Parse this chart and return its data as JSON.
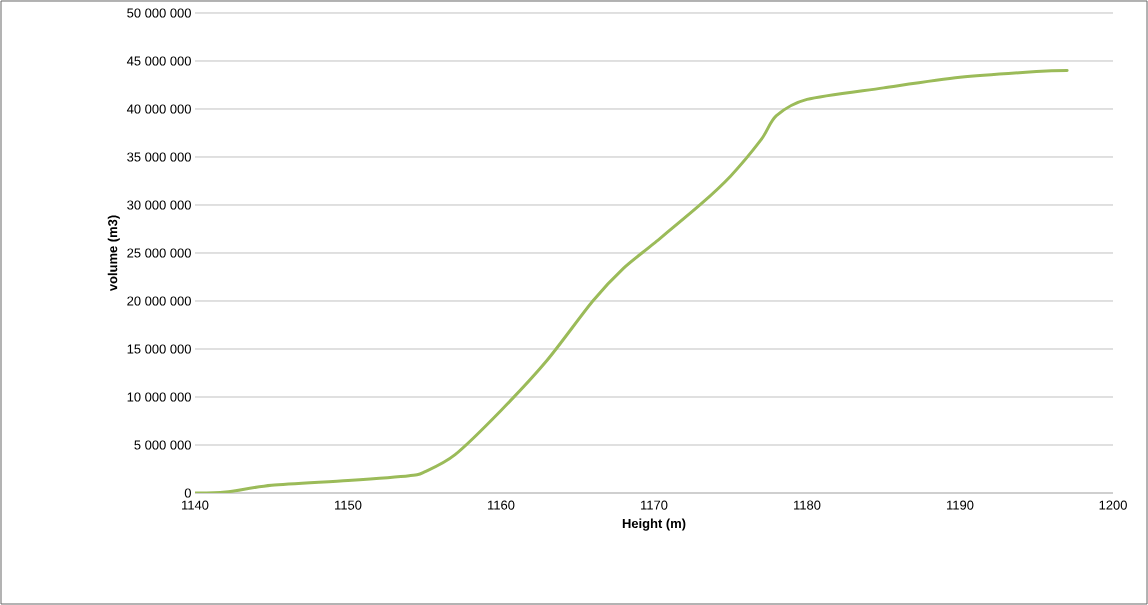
{
  "chart_data": {
    "type": "line",
    "xlabel": "Height (m)",
    "ylabel": "volume (m3)",
    "x": [
      1140,
      1142,
      1145,
      1150,
      1154,
      1155,
      1157,
      1160,
      1163,
      1166,
      1168,
      1170,
      1173,
      1175,
      1177,
      1178,
      1180,
      1185,
      1190,
      1195,
      1197
    ],
    "series": [
      {
        "color": "#9bbb59",
        "values": [
          0,
          100000,
          800000,
          1300000,
          1800000,
          2200000,
          4000000,
          8600000,
          13800000,
          20000000,
          23400000,
          26000000,
          30000000,
          33000000,
          36800000,
          39300000,
          41000000,
          42200000,
          43300000,
          43900000,
          44000000
        ]
      }
    ],
    "xlim": [
      1140,
      1200
    ],
    "xticks": [
      1140,
      1150,
      1160,
      1170,
      1180,
      1190,
      1200
    ],
    "ylim": [
      0,
      50000000
    ],
    "yticks": [
      0,
      {
        "value": 5000000,
        "label": "5 000 000"
      },
      {
        "value": 10000000,
        "label": "10 000 000"
      },
      {
        "value": 15000000,
        "label": "15 000 000"
      },
      {
        "value": 20000000,
        "label": "20 000 000"
      },
      {
        "value": 25000000,
        "label": "25 000 000"
      },
      {
        "value": 30000000,
        "label": "30 000 000"
      },
      {
        "value": 35000000,
        "label": "35 000 000"
      },
      {
        "value": 40000000,
        "label": "40 000 000"
      },
      {
        "value": 45000000,
        "label": "45 000 000"
      },
      {
        "value": 50000000,
        "label": "50 000 000"
      }
    ],
    "grid": "y"
  }
}
